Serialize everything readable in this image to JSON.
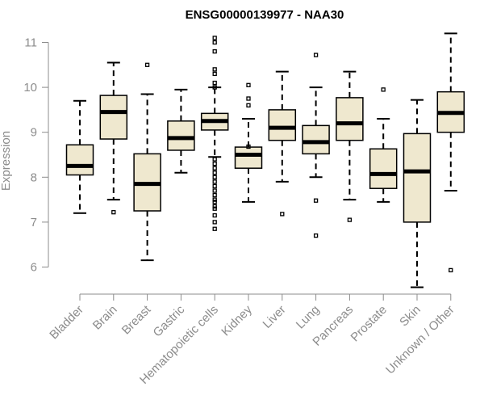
{
  "chart_data": {
    "type": "boxplot",
    "title": "ENSG00000139977 - NAA30",
    "ylabel": "Expression",
    "ylim": [
      5.5,
      11.3
    ],
    "yticks": [
      6,
      7,
      8,
      9,
      10,
      11
    ],
    "box_fill": "#efe8cf",
    "axis_color": "#8c8c8c",
    "categories": [
      "Bladder",
      "Brain",
      "Breast",
      "Gastric",
      "Hematopoietic cells",
      "Kidney",
      "Liver",
      "Lung",
      "Pancreas",
      "Prostate",
      "Skin",
      "Unknown / Other"
    ],
    "boxes": [
      {
        "whisker_low": 7.2,
        "q1": 8.05,
        "median": 8.25,
        "q3": 8.72,
        "whisker_high": 9.7,
        "outliers": []
      },
      {
        "whisker_low": 7.5,
        "q1": 8.85,
        "median": 9.45,
        "q3": 9.82,
        "whisker_high": 10.55,
        "outliers": [
          7.22
        ]
      },
      {
        "whisker_low": 6.15,
        "q1": 7.25,
        "median": 7.85,
        "q3": 8.52,
        "whisker_high": 9.85,
        "outliers": [
          10.5
        ]
      },
      {
        "whisker_low": 8.1,
        "q1": 8.6,
        "median": 8.87,
        "q3": 9.25,
        "whisker_high": 9.95,
        "outliers": []
      },
      {
        "whisker_low": 8.45,
        "q1": 9.05,
        "median": 9.25,
        "q3": 9.42,
        "whisker_high": 10.0,
        "outliers": [
          11.1,
          11.0,
          10.8,
          10.4,
          10.3,
          10.1,
          10.0,
          8.4,
          8.3,
          8.2,
          8.1,
          8.0,
          7.9,
          7.8,
          7.7,
          7.6,
          7.5,
          7.45,
          7.35,
          7.3,
          7.15,
          7.0,
          6.85
        ]
      },
      {
        "whisker_low": 7.45,
        "q1": 8.2,
        "median": 8.5,
        "q3": 8.67,
        "whisker_high": 9.3,
        "outliers": [
          10.05,
          9.75,
          9.6,
          8.68
        ]
      },
      {
        "whisker_low": 7.9,
        "q1": 8.82,
        "median": 9.1,
        "q3": 9.5,
        "whisker_high": 10.35,
        "outliers": [
          7.18
        ]
      },
      {
        "whisker_low": 8.0,
        "q1": 8.52,
        "median": 8.78,
        "q3": 9.15,
        "whisker_high": 10.0,
        "outliers": [
          10.72,
          7.48,
          6.7
        ]
      },
      {
        "whisker_low": 7.5,
        "q1": 8.82,
        "median": 9.2,
        "q3": 9.77,
        "whisker_high": 10.35,
        "outliers": [
          7.05
        ]
      },
      {
        "whisker_low": 7.45,
        "q1": 7.75,
        "median": 8.07,
        "q3": 8.63,
        "whisker_high": 9.3,
        "outliers": [
          9.95
        ]
      },
      {
        "whisker_low": 5.55,
        "q1": 7.0,
        "median": 8.13,
        "q3": 8.97,
        "whisker_high": 9.72,
        "outliers": []
      },
      {
        "whisker_low": 7.7,
        "q1": 9.0,
        "median": 9.43,
        "q3": 9.9,
        "whisker_high": 11.2,
        "outliers": [
          5.93
        ]
      }
    ]
  }
}
